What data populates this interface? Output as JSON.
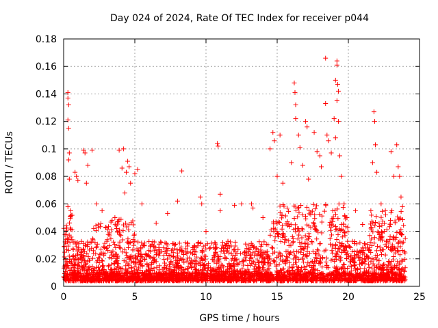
{
  "chart_data": {
    "type": "scatter",
    "title": "Day 024 of 2024, Rate Of TEC Index for receiver p044",
    "xlabel": "GPS time / hours",
    "ylabel": "ROTI / TECUs",
    "xlim": [
      0,
      25
    ],
    "ylim": [
      0,
      0.18
    ],
    "xticks": [
      0,
      5,
      10,
      15,
      20,
      25
    ],
    "xtick_labels": [
      "0",
      "5",
      "10",
      "15",
      "20",
      "25"
    ],
    "yticks": [
      0,
      0.02,
      0.04,
      0.06,
      0.08,
      0.1,
      0.12,
      0.14,
      0.16,
      0.18
    ],
    "ytick_labels": [
      "0",
      "0.02",
      "0.04",
      "0.06",
      "0.08",
      "0.1",
      "0.12",
      "0.14",
      "0.16",
      "0.18"
    ],
    "grid": true,
    "marker": "plus",
    "series_color": "#ff0000",
    "series": [
      {
        "name": "ROTI",
        "x_range": [
          0,
          24
        ],
        "note": "dense scatter of ROTI samples; notable high points listed",
        "points": [
          [
            0.3,
            0.141
          ],
          [
            0.3,
            0.137
          ],
          [
            0.35,
            0.132
          ],
          [
            0.3,
            0.121
          ],
          [
            0.35,
            0.115
          ],
          [
            0.4,
            0.097
          ],
          [
            0.35,
            0.092
          ],
          [
            0.4,
            0.078
          ],
          [
            0.3,
            0.058
          ],
          [
            0.5,
            0.055
          ],
          [
            0.8,
            0.083
          ],
          [
            0.9,
            0.08
          ],
          [
            1.0,
            0.077
          ],
          [
            1.4,
            0.099
          ],
          [
            1.5,
            0.097
          ],
          [
            1.7,
            0.088
          ],
          [
            2.0,
            0.099
          ],
          [
            1.6,
            0.075
          ],
          [
            2.3,
            0.06
          ],
          [
            2.7,
            0.055
          ],
          [
            3.6,
            0.05
          ],
          [
            3.9,
            0.099
          ],
          [
            4.2,
            0.1
          ],
          [
            4.1,
            0.086
          ],
          [
            4.4,
            0.083
          ],
          [
            4.5,
            0.091
          ],
          [
            4.6,
            0.087
          ],
          [
            4.7,
            0.075
          ],
          [
            4.3,
            0.068
          ],
          [
            5.0,
            0.082
          ],
          [
            5.2,
            0.085
          ],
          [
            5.5,
            0.06
          ],
          [
            6.5,
            0.046
          ],
          [
            7.3,
            0.053
          ],
          [
            8.0,
            0.062
          ],
          [
            8.3,
            0.084
          ],
          [
            9.6,
            0.065
          ],
          [
            9.7,
            0.06
          ],
          [
            10.0,
            0.04
          ],
          [
            10.8,
            0.104
          ],
          [
            10.85,
            0.102
          ],
          [
            11.0,
            0.067
          ],
          [
            11.0,
            0.055
          ],
          [
            12.0,
            0.059
          ],
          [
            12.5,
            0.06
          ],
          [
            13.3,
            0.057
          ],
          [
            13.2,
            0.06
          ],
          [
            14.0,
            0.05
          ],
          [
            14.5,
            0.1
          ],
          [
            14.7,
            0.112
          ],
          [
            14.8,
            0.106
          ],
          [
            15.0,
            0.08
          ],
          [
            15.2,
            0.11
          ],
          [
            15.4,
            0.075
          ],
          [
            16.0,
            0.09
          ],
          [
            16.2,
            0.148
          ],
          [
            16.25,
            0.141
          ],
          [
            16.3,
            0.132
          ],
          [
            16.3,
            0.122
          ],
          [
            16.5,
            0.11
          ],
          [
            16.6,
            0.101
          ],
          [
            16.8,
            0.088
          ],
          [
            17.0,
            0.12
          ],
          [
            17.1,
            0.116
          ],
          [
            17.2,
            0.078
          ],
          [
            17.6,
            0.112
          ],
          [
            17.8,
            0.098
          ],
          [
            18.0,
            0.095
          ],
          [
            18.1,
            0.087
          ],
          [
            18.4,
            0.166
          ],
          [
            18.4,
            0.133
          ],
          [
            18.5,
            0.11
          ],
          [
            18.6,
            0.106
          ],
          [
            18.8,
            0.097
          ],
          [
            19.0,
            0.122
          ],
          [
            19.1,
            0.15
          ],
          [
            19.2,
            0.164
          ],
          [
            19.2,
            0.161
          ],
          [
            19.25,
            0.147
          ],
          [
            19.3,
            0.142
          ],
          [
            19.2,
            0.135
          ],
          [
            19.3,
            0.12
          ],
          [
            19.1,
            0.108
          ],
          [
            19.4,
            0.095
          ],
          [
            19.5,
            0.08
          ],
          [
            19.7,
            0.06
          ],
          [
            19.9,
            0.05
          ],
          [
            20.5,
            0.055
          ],
          [
            21.0,
            0.045
          ],
          [
            21.7,
            0.09
          ],
          [
            21.8,
            0.127
          ],
          [
            21.85,
            0.12
          ],
          [
            21.9,
            0.103
          ],
          [
            22.0,
            0.083
          ],
          [
            22.3,
            0.06
          ],
          [
            22.6,
            0.055
          ],
          [
            23.0,
            0.098
          ],
          [
            23.2,
            0.08
          ],
          [
            23.4,
            0.103
          ],
          [
            23.5,
            0.087
          ],
          [
            23.6,
            0.08
          ],
          [
            23.7,
            0.065
          ],
          [
            23.8,
            0.058
          ],
          [
            24.0,
            0.035
          ]
        ]
      }
    ]
  }
}
